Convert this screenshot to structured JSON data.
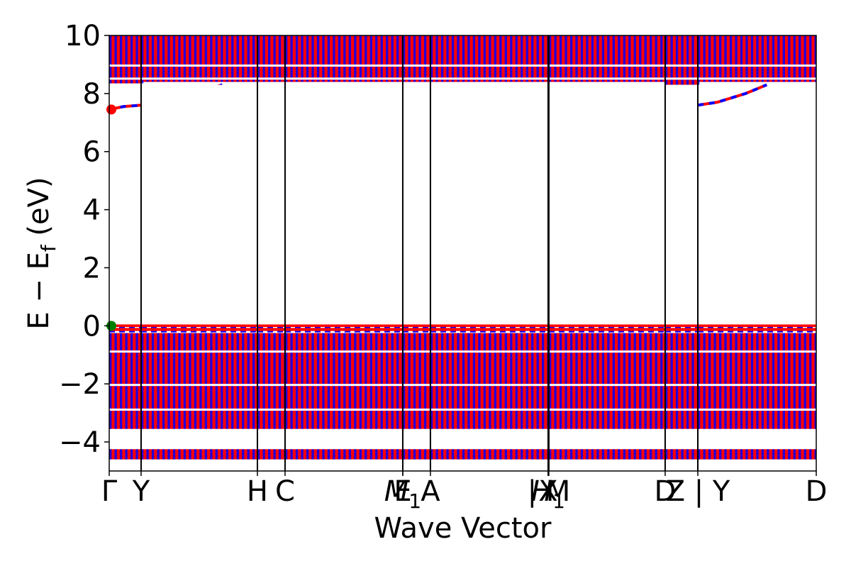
{
  "chart_data": {
    "type": "line",
    "title": "",
    "xlabel": "Wave Vector",
    "ylabel": "E − E",
    "ylabel_sub": "f",
    "ylabel_unit": " (eV)",
    "ylim": [
      -5,
      10
    ],
    "y_ticks": [
      {
        "value": 10,
        "label": "10"
      },
      {
        "value": 8,
        "label": "8"
      },
      {
        "value": 6,
        "label": "6"
      },
      {
        "value": 4,
        "label": "4"
      },
      {
        "value": 2,
        "label": "2"
      },
      {
        "value": 0,
        "label": "0"
      },
      {
        "value": -2,
        "label": "−2"
      },
      {
        "value": -4,
        "label": "−4"
      }
    ],
    "k_path_length": 1,
    "k_ticks": [
      {
        "value": 0.0,
        "label": "Γ",
        "sub": ""
      },
      {
        "value": 0.0451,
        "label": "Y",
        "sub": ""
      },
      {
        "value": 0.2096,
        "label": "H",
        "sub": ""
      },
      {
        "value": 0.2487,
        "label": "C",
        "sub": ""
      },
      {
        "value": 0.4152,
        "label": "E",
        "sub": ""
      },
      {
        "value": 0.4152,
        "label": "M",
        "sub": "1"
      },
      {
        "value": 0.4543,
        "label": "A",
        "sub": ""
      },
      {
        "value": 0.6208,
        "label": "X",
        "sub": ""
      },
      {
        "value": 0.6208,
        "label": "H",
        "sub": "1"
      },
      {
        "value": 0.6218,
        "label": "| M",
        "sub": ""
      },
      {
        "value": 0.7863,
        "label": "D",
        "sub": ""
      },
      {
        "value": 0.8325,
        "label": "Z | Y",
        "sub": ""
      },
      {
        "value": 1.0,
        "label": "D",
        "sub": ""
      }
    ],
    "series": [
      {
        "color": "#ff0000",
        "style": "solid"
      },
      {
        "color": "#0000ff",
        "style": "dashed"
      }
    ],
    "band_groups": [
      {
        "segment_boundaries": [
          0,
          0.0451,
          0.2096,
          0.2487,
          0.4152,
          0.4543,
          0.6208,
          0.6218,
          0.7863,
          0.8325,
          1.0
        ]
      }
    ],
    "highlight_points": [
      {
        "x": 0.0,
        "y": 7.45,
        "color": "#ff0000"
      },
      {
        "x": 0.0,
        "y": 0.0,
        "color": "#008000"
      }
    ]
  }
}
